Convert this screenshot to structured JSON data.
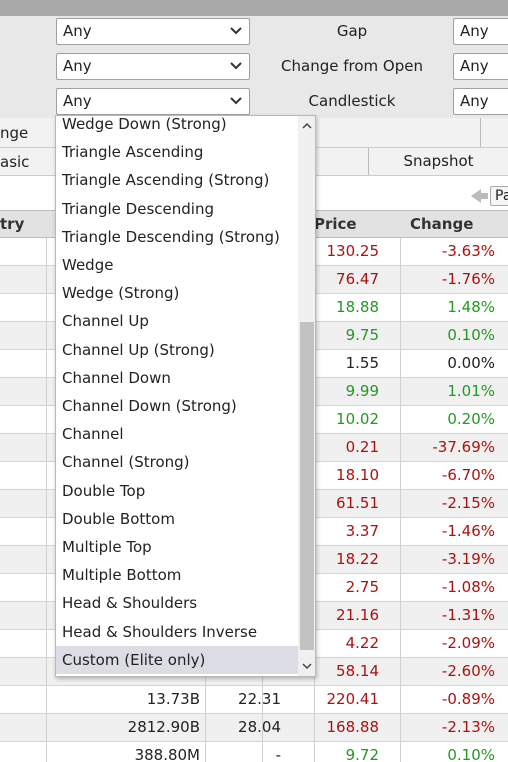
{
  "filters": {
    "row1": {
      "select_left": "Any",
      "label": "Gap",
      "select_right": "Any"
    },
    "row2": {
      "select_left": "Any",
      "label": "Change from Open",
      "select_right": "Any"
    },
    "row3": {
      "select_left": "Any",
      "label": "Candlestick",
      "select_right": "Any"
    }
  },
  "partial_rows": {
    "range_label_fragment": "nge",
    "basic_tab_fragment": "asic",
    "snapshot_tab": "Snapshot",
    "page_button_fragment": "Pa"
  },
  "table": {
    "headers": {
      "industry_fragment": "try",
      "price": "Price",
      "change": "Change"
    },
    "rows": [
      {
        "price": "130.25",
        "change": "-3.63%",
        "color": "red"
      },
      {
        "price": "76.47",
        "change": "-1.76%",
        "color": "red"
      },
      {
        "price": "18.88",
        "change": "1.48%",
        "color": "green"
      },
      {
        "price": "9.75",
        "change": "0.10%",
        "color": "green"
      },
      {
        "price": "1.55",
        "change": "0.00%",
        "color": "black"
      },
      {
        "price": "9.99",
        "change": "1.01%",
        "color": "green"
      },
      {
        "price": "10.02",
        "change": "0.20%",
        "color": "green"
      },
      {
        "price": "0.21",
        "change": "-37.69%",
        "color": "red"
      },
      {
        "price": "18.10",
        "change": "-6.70%",
        "color": "red"
      },
      {
        "price": "61.51",
        "change": "-2.15%",
        "color": "red"
      },
      {
        "price": "3.37",
        "change": "-1.46%",
        "color": "red"
      },
      {
        "price": "18.22",
        "change": "-3.19%",
        "color": "red"
      },
      {
        "price": "2.75",
        "change": "-1.08%",
        "color": "red"
      },
      {
        "price": "21.16",
        "change": "-1.31%",
        "color": "red"
      },
      {
        "price": "4.22",
        "change": "-2.09%",
        "color": "red"
      },
      {
        "price": "58.14",
        "change": "-2.60%",
        "color": "red"
      },
      {
        "market_cap": "13.73B",
        "pe": "22.31",
        "price": "220.41",
        "change": "-0.89%",
        "color": "red"
      },
      {
        "market_cap": "2812.90B",
        "pe": "28.04",
        "price": "168.88",
        "change": "-2.13%",
        "color": "red"
      },
      {
        "market_cap": "388.80M",
        "pe": "-",
        "price": "9.72",
        "change": "0.10%",
        "color": "green"
      }
    ]
  },
  "candlestick_dropdown": {
    "options": [
      "Wedge Down (Strong)",
      "Triangle Ascending",
      "Triangle Ascending (Strong)",
      "Triangle Descending",
      "Triangle Descending (Strong)",
      "Wedge",
      "Wedge (Strong)",
      "Channel Up",
      "Channel Up (Strong)",
      "Channel Down",
      "Channel Down (Strong)",
      "Channel",
      "Channel (Strong)",
      "Double Top",
      "Double Bottom",
      "Multiple Top",
      "Multiple Bottom",
      "Head & Shoulders",
      "Head & Shoulders Inverse",
      "Custom (Elite only)"
    ],
    "highlighted": "Custom (Elite only)"
  },
  "colors": {
    "red": "#aa1111",
    "green": "#229922",
    "black": "#222222"
  }
}
